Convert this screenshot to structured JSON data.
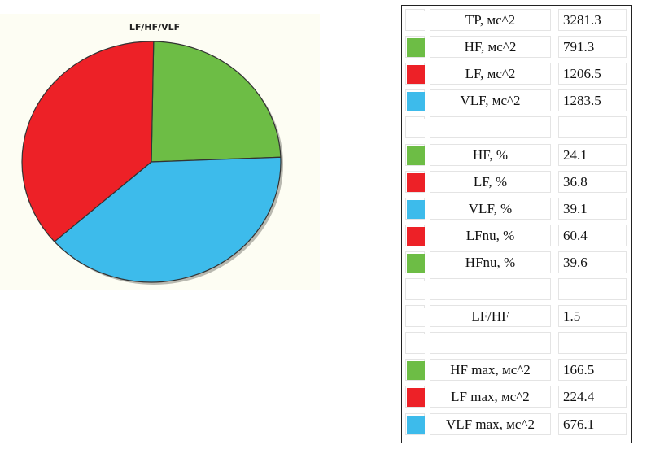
{
  "colors": {
    "hf": "#6dbd45",
    "lf": "#ed2127",
    "vlf": "#3dbbeb",
    "empty": "#ffffff"
  },
  "chart_data": {
    "type": "pie",
    "title": "LF/HF/VLF",
    "slices": [
      {
        "name": "HF",
        "value": 24.1,
        "color": "#6dbd45"
      },
      {
        "name": "VLF",
        "value": 39.1,
        "color": "#3dbbeb"
      },
      {
        "name": "LF",
        "value": 36.8,
        "color": "#ed2127"
      }
    ]
  },
  "table": {
    "rows": [
      {
        "swatch": "empty",
        "label": "TP, мс^2",
        "value": "3281.3"
      },
      {
        "swatch": "hf",
        "label": "HF, мс^2",
        "value": "791.3"
      },
      {
        "swatch": "lf",
        "label": "LF, мс^2",
        "value": "1206.5"
      },
      {
        "swatch": "vlf",
        "label": "VLF, мс^2",
        "value": "1283.5"
      },
      {
        "swatch": "empty",
        "label": "",
        "value": ""
      },
      {
        "swatch": "hf",
        "label": "HF, %",
        "value": "24.1"
      },
      {
        "swatch": "lf",
        "label": "LF, %",
        "value": "36.8"
      },
      {
        "swatch": "vlf",
        "label": "VLF, %",
        "value": "39.1"
      },
      {
        "swatch": "lf",
        "label": "LFnu, %",
        "value": "60.4"
      },
      {
        "swatch": "hf",
        "label": "HFnu, %",
        "value": "39.6"
      },
      {
        "swatch": "empty",
        "label": "",
        "value": ""
      },
      {
        "swatch": "empty",
        "label": "LF/HF",
        "value": "1.5"
      },
      {
        "swatch": "empty",
        "label": "",
        "value": ""
      },
      {
        "swatch": "hf",
        "label": "HF max, мс^2",
        "value": "166.5"
      },
      {
        "swatch": "lf",
        "label": "LF max, мс^2",
        "value": "224.4"
      },
      {
        "swatch": "vlf",
        "label": "VLF max, мс^2",
        "value": "676.1"
      }
    ]
  }
}
